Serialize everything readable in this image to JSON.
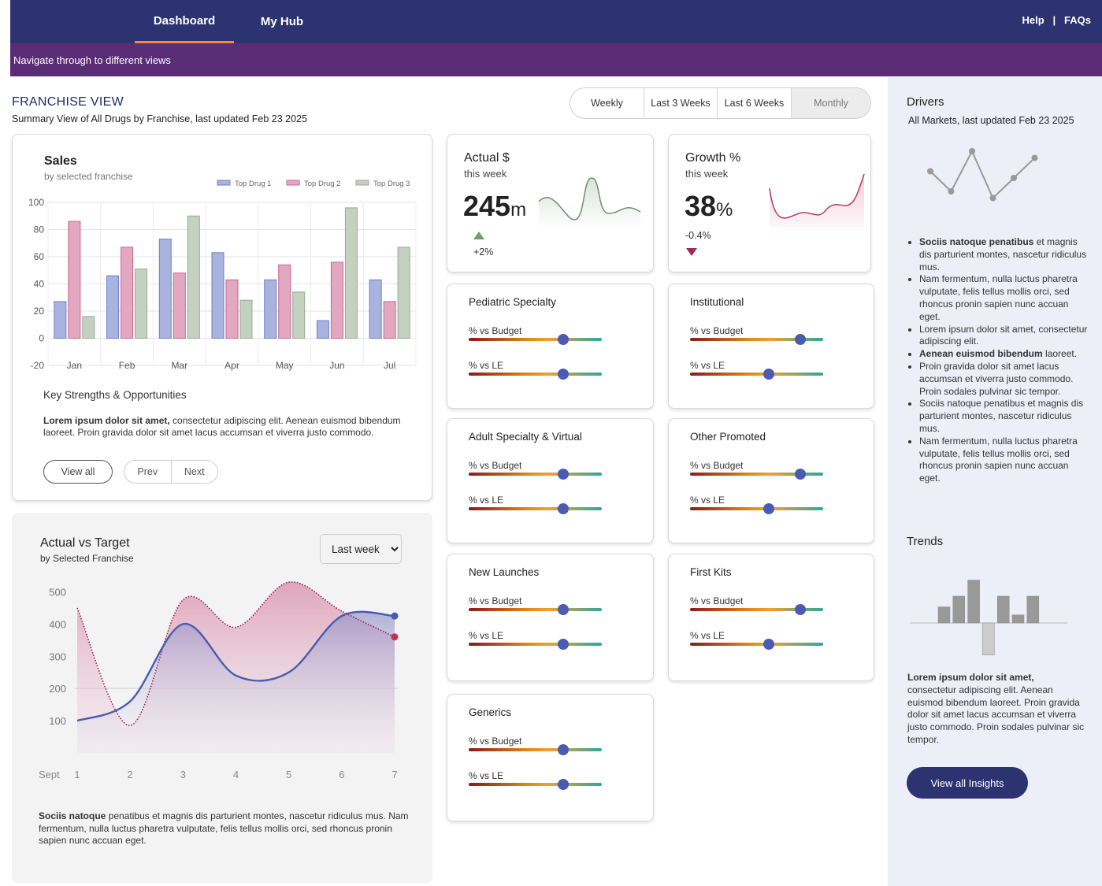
{
  "nav": {
    "tabs": [
      {
        "label": "Dashboard"
      },
      {
        "label": "My Hub"
      }
    ],
    "help": "Help",
    "sep": "|",
    "faqs": "FAQs",
    "sub_banner": "Navigate through to different views"
  },
  "header": {
    "title": "FRANCHISE VIEW",
    "subtitle": "Summary View of All Drugs by Franchise, last updated Feb 23 2025"
  },
  "period_toggle": [
    "Weekly",
    "Last 3 Weeks",
    "Last 6 Weeks",
    "Monthly"
  ],
  "sales": {
    "title": "Sales",
    "subtitle": "by selected franchise",
    "ks_title": "Key Strengths & Opportunities",
    "ks_bold": "Lorem ipsum dolor sit amet,",
    "ks_rest": " consectetur adipiscing elit. Aenean euismod bibendum laoreet. Proin gravida dolor sit amet lacus accumsan et viverra justo commodo.",
    "view_all": "View all",
    "prev": "Prev",
    "next": "Next"
  },
  "chart_data": [
    {
      "type": "bar",
      "title": "Sales",
      "subtitle": "by selected franchise",
      "categories": [
        "Jan",
        "Feb",
        "Mar",
        "Apr",
        "May",
        "Jun",
        "Jul"
      ],
      "series": [
        {
          "name": "Top Drug 1",
          "values": [
            27,
            46,
            73,
            63,
            43,
            13,
            43
          ]
        },
        {
          "name": "Top Drug 2",
          "values": [
            86,
            67,
            48,
            43,
            54,
            56,
            27
          ]
        },
        {
          "name": "Top Drug 3",
          "values": [
            16,
            51,
            90,
            28,
            34,
            96,
            67
          ]
        }
      ],
      "yticks": [
        "100",
        "80",
        "60",
        "40",
        "20",
        "0",
        "-20"
      ],
      "ylim": [
        -20,
        100
      ],
      "legend": "top-right",
      "grid": true,
      "colors": [
        "#a8b3e0",
        "#e2a8c0",
        "#c4d1c0"
      ]
    },
    {
      "type": "area",
      "title": "Actual vs Target",
      "subtitle": "by Selected Franchise",
      "x": [
        1,
        2,
        3,
        4,
        5,
        6,
        7
      ],
      "xlabel_prefix": "Sept",
      "series": [
        {
          "values": [
            100,
            160,
            400,
            240,
            250,
            425,
            425
          ],
          "style": "solid",
          "color": "#4a5bb0"
        },
        {
          "values": [
            450,
            85,
            475,
            390,
            530,
            440,
            360
          ],
          "style": "dotted",
          "color": "#9a1e4a"
        }
      ],
      "yticks": [
        "500",
        "400",
        "300",
        "200",
        "100"
      ],
      "ylim": [
        0,
        550
      ]
    },
    {
      "type": "line",
      "title": "Drivers",
      "values": [
        5,
        2,
        8,
        1,
        4,
        7
      ],
      "color": "#999999"
    },
    {
      "type": "bar",
      "title": "Trends",
      "values": [
        3,
        5,
        8,
        -6,
        5,
        1.5,
        5
      ],
      "colors": [
        "#999999",
        "#999999",
        "#999999",
        "#cccccc",
        "#999999",
        "#999999",
        "#999999"
      ]
    }
  ],
  "actual_target": {
    "title": "Actual vs Target",
    "subtitle": "by Selected Franchise",
    "select_value": "Last week",
    "note_bold": "Sociis natoque",
    "note_rest": " penatibus et magnis dis parturient montes, nascetur ridiculus mus. Nam fermentum, nulla luctus pharetra vulputate, felis tellus mollis orci, sed rhoncus pronin sapien nunc accuan eget."
  },
  "kpi": {
    "actual": {
      "title": "Actual $",
      "sub": "this week",
      "value": "245",
      "unit": "m",
      "delta": "+2%",
      "color": "#6e8e6e"
    },
    "growth": {
      "title": "Growth %",
      "sub": "this week",
      "value": "38",
      "unit": "%",
      "delta": "-0.4%",
      "color": "#b23a66"
    }
  },
  "segments": [
    {
      "name": "Pediatric Specialty",
      "lb1": "% vs Budget",
      "lb2": "% vs LE",
      "budget": 0.71,
      "le": 0.71
    },
    {
      "name": "Institutional",
      "lb1": "% vs Budget",
      "lb2": "% vs LE",
      "budget": 0.83,
      "le": 0.59
    },
    {
      "name": "Adult Specialty & Virtual",
      "lb1": "% vs Budget",
      "lb2": "% vs LE",
      "budget": 0.71,
      "le": 0.71
    },
    {
      "name": "Other Promoted",
      "lb1": "% vs Budget",
      "lb2": "% vs LE",
      "budget": 0.83,
      "le": 0.59
    },
    {
      "name": "New Launches",
      "lb1": "% vs Budget",
      "lb2": "% vs LE",
      "budget": 0.71,
      "le": 0.71
    },
    {
      "name": "First Kits",
      "lb1": "% vs Budget",
      "lb2": "% vs LE",
      "budget": 0.83,
      "le": 0.59
    },
    {
      "name": "Generics",
      "lb1": "% vs Budget",
      "lb2": "% vs LE",
      "budget": 0.71,
      "le": 0.71
    }
  ],
  "rail": {
    "drivers_title": "Drivers",
    "drivers_sub": "All Markets, last updated Feb 23 2025",
    "bullets": [
      {
        "b": "Sociis natoque penatibus",
        "t": " et magnis dis parturient montes, nascetur ridiculus mus."
      },
      {
        "b": "",
        "t": "Nam fermentum, nulla luctus pharetra vulputate, felis tellus mollis orci, sed rhoncus pronin sapien nunc accuan eget."
      },
      {
        "b": "",
        "t": "Lorem ipsum dolor sit amet, consectetur adipiscing elit."
      },
      {
        "b": "Aenean euismod bibendum",
        "t": " laoreet."
      },
      {
        "b": "",
        "t": "Proin gravida dolor sit amet lacus accumsan et viverra justo commodo. Proin sodales pulvinar sic tempor."
      },
      {
        "b": "",
        "t": "Sociis natoque penatibus et magnis dis parturient montes, nascetur ridiculus mus."
      },
      {
        "b": "",
        "t": "Nam fermentum, nulla luctus pharetra vulputate, felis tellus mollis orci, sed rhoncus pronin sapien nunc accuan eget."
      }
    ],
    "trends_title": "Trends",
    "trends_bold": "Lorem ipsum dolor sit amet,",
    "trends_rest": " consectetur adipiscing elit. Aenean euismod bibendum laoreet. Proin gravida dolor sit amet lacus accumsan et viverra justo commodo. Proin sodales pulvinar sic tempor.",
    "button": "View all Insights"
  }
}
